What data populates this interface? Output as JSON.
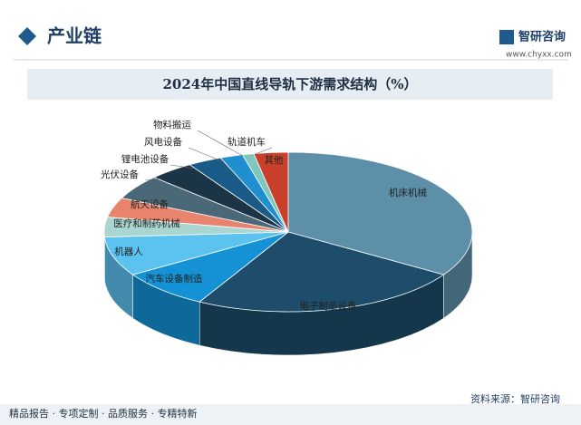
{
  "header": {
    "section": "产业链",
    "logo": "智研咨询",
    "url": "www.chyxx.com"
  },
  "footer": {
    "tags": "精品报告 · 专项定制 · 品质服务 · 专精特新",
    "source": "资料来源：智研咨询"
  },
  "chart_data": {
    "type": "pie3d",
    "title": "2024年中国直线导轨下游需求结构（%）",
    "categories": [
      "机床机械",
      "电子制造设备",
      "汽车设备制造",
      "机器人",
      "医疗和制药机械",
      "航天设备",
      "光伏设备",
      "锂电池设备",
      "风电设备",
      "物料搬运",
      "轨道机车",
      "其他"
    ],
    "values": [
      34,
      24,
      8,
      8,
      4,
      4,
      5,
      4,
      3,
      2,
      1,
      3
    ],
    "colors": [
      "#5e8fa9",
      "#1d4d6a",
      "#1591d6",
      "#5cc2f0",
      "#a9d6d1",
      "#e8836e",
      "#4b6878",
      "#1b3546",
      "#1a5a86",
      "#1f8fd0",
      "#7fc6c0",
      "#c8402a"
    ]
  }
}
